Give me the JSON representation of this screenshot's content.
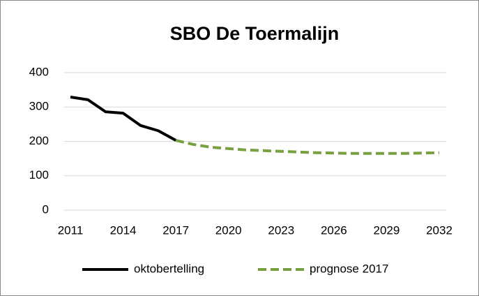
{
  "chart_data": {
    "type": "line",
    "title": "SBO  De Toermalijn",
    "x": [
      2011,
      2012,
      2013,
      2014,
      2015,
      2016,
      2017,
      2018,
      2019,
      2020,
      2021,
      2022,
      2023,
      2024,
      2025,
      2026,
      2027,
      2028,
      2029,
      2030,
      2031,
      2032
    ],
    "series": [
      {
        "name": "oktobertelling",
        "color": "#000000",
        "dashed": false,
        "values": [
          329,
          321,
          286,
          282,
          246,
          231,
          203,
          null,
          null,
          null,
          null,
          null,
          null,
          null,
          null,
          null,
          null,
          null,
          null,
          null,
          null,
          null
        ]
      },
      {
        "name": "prognose 2017",
        "color": "#77a040",
        "dashed": true,
        "values": [
          null,
          null,
          null,
          null,
          null,
          null,
          203,
          191,
          183,
          179,
          175,
          173,
          171,
          169,
          167,
          166,
          165,
          165,
          165,
          165,
          166,
          167
        ]
      }
    ],
    "xlim": [
      2011,
      2032
    ],
    "xticks": [
      2011,
      2014,
      2017,
      2020,
      2023,
      2026,
      2029,
      2032
    ],
    "ylim": [
      0,
      400
    ],
    "yticks": [
      0,
      100,
      200,
      300,
      400
    ],
    "grid": true,
    "legend": "bottom"
  }
}
